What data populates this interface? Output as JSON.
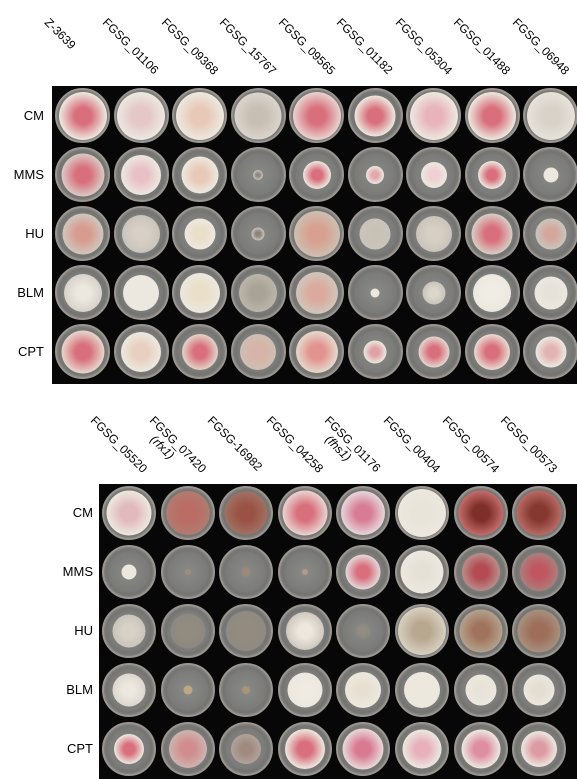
{
  "panel_top": {
    "strains": [
      "Z-3639",
      "FGSG_01106",
      "FGSG_09368",
      "FGSG_15767",
      "FGSG_09565",
      "FGSG_01182",
      "FGSG_05304",
      "FGSG_01488",
      "FGSG_06948"
    ],
    "strain_notes": [
      "",
      "",
      "",
      "",
      "",
      "",
      "",
      "",
      ""
    ],
    "treatments": [
      "CM",
      "MMS",
      "HU",
      "BLM",
      "CPT"
    ]
  },
  "panel_bottom": {
    "strains": [
      "FGSG_05520",
      "FGSG_07420",
      "FGSG-16982",
      "FGSG_04258",
      "FGSG_01176",
      "FGSG_00404",
      "FGSG_00574",
      "FGSG_00573"
    ],
    "strain_notes": [
      "",
      "(rfx1)",
      "",
      "",
      "(fhs1)",
      "",
      "",
      ""
    ],
    "treatments": [
      "CM",
      "MMS",
      "HU",
      "BLM",
      "CPT"
    ]
  },
  "colors": {
    "background": "#ffffff",
    "panel": "#070707",
    "plate_medium": "#7f807d",
    "mycelium_white": "#e8e4dc",
    "mycelium_pink": "#d9757f",
    "mycelium_brown": "#8a4a3c"
  }
}
